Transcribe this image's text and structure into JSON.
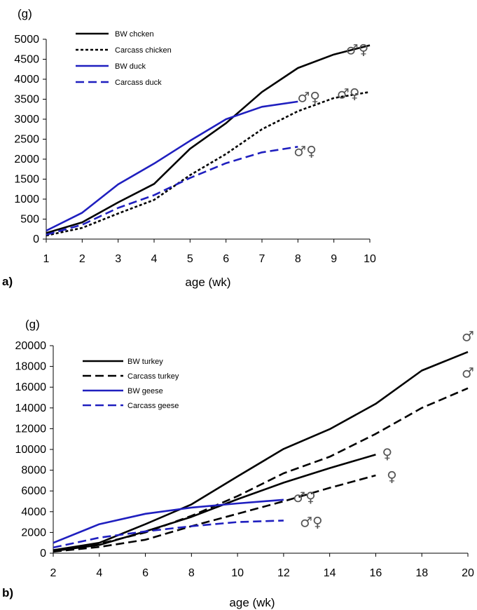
{
  "chart_data": [
    {
      "type": "line",
      "panel_label": "a)",
      "y_unit": "(g)",
      "xlabel": "age (wk)",
      "xlim": [
        1,
        10
      ],
      "ylim": [
        0,
        5000
      ],
      "x_ticks": [
        1,
        2,
        3,
        4,
        5,
        6,
        7,
        8,
        9,
        10
      ],
      "y_ticks": [
        0,
        500,
        1000,
        1500,
        2000,
        2500,
        3000,
        3500,
        4000,
        4500,
        5000
      ],
      "legend_position": "top-left",
      "grid": false,
      "series": [
        {
          "name": "BW chcken",
          "color": "#000000",
          "dash": "solid",
          "x": [
            1,
            2,
            3,
            4,
            5,
            6,
            7,
            8,
            9,
            10
          ],
          "y": [
            150,
            420,
            920,
            1380,
            2260,
            2900,
            3680,
            4280,
            4620,
            4850
          ]
        },
        {
          "name": "Carcass chicken",
          "color": "#000000",
          "dash": "dotted",
          "x": [
            1,
            2,
            3,
            4,
            5,
            6,
            7,
            8,
            9,
            10
          ],
          "y": [
            90,
            280,
            640,
            980,
            1600,
            2130,
            2750,
            3200,
            3530,
            3680
          ]
        },
        {
          "name": "BW duck",
          "color": "#1f1fbf",
          "dash": "solid",
          "x": [
            1,
            2,
            3,
            4,
            5,
            6,
            7,
            8
          ],
          "y": [
            210,
            660,
            1370,
            1890,
            2460,
            3000,
            3310,
            3440
          ]
        },
        {
          "name": "Carcass duck",
          "color": "#1f1fbf",
          "dash": "dashed",
          "x": [
            1,
            2,
            3,
            4,
            5,
            6,
            7,
            8
          ],
          "y": [
            110,
            360,
            780,
            1100,
            1530,
            1900,
            2170,
            2310
          ]
        }
      ],
      "annotations": [
        {
          "text": "♂♀",
          "x": 9.65,
          "y": 4750
        },
        {
          "text": "♂♀",
          "x": 8.3,
          "y": 3550
        },
        {
          "text": "♂♀",
          "x": 9.4,
          "y": 3640
        },
        {
          "text": "♂♀",
          "x": 8.2,
          "y": 2200
        }
      ]
    },
    {
      "type": "line",
      "panel_label": "b)",
      "y_unit": "(g)",
      "xlabel": "age (wk)",
      "xlim": [
        2,
        20
      ],
      "ylim": [
        0,
        20000
      ],
      "x_ticks": [
        2,
        4,
        6,
        8,
        10,
        12,
        14,
        16,
        18,
        20
      ],
      "y_ticks": [
        0,
        2000,
        4000,
        6000,
        8000,
        10000,
        12000,
        14000,
        16000,
        18000,
        20000
      ],
      "legend_position": "top-left",
      "grid": false,
      "series": [
        {
          "name": "BW turkey",
          "color": "#000000",
          "dash": "solid",
          "x": [
            2,
            4,
            6,
            8,
            10,
            12,
            14,
            16,
            18,
            20
          ],
          "y": [
            300,
            1000,
            2800,
            4700,
            7400,
            10050,
            11950,
            14400,
            17600,
            19400
          ]
        },
        {
          "name": "",
          "color": "#000000",
          "dash": "solid",
          "x": [
            2,
            4,
            6,
            8,
            10,
            12,
            14,
            16
          ],
          "y": [
            200,
            800,
            2100,
            3500,
            5200,
            6800,
            8200,
            9500
          ]
        },
        {
          "name": "Carcass turkey",
          "color": "#000000",
          "dash": "dashed",
          "x": [
            2,
            4,
            6,
            8,
            10,
            12,
            14,
            16,
            18,
            20
          ],
          "y": [
            250,
            900,
            2000,
            3600,
            5500,
            7700,
            9300,
            11500,
            14000,
            15900
          ]
        },
        {
          "name": "",
          "color": "#000000",
          "dash": "dashed",
          "x": [
            2,
            4,
            6,
            8,
            10,
            12,
            14,
            16
          ],
          "y": [
            150,
            600,
            1300,
            2600,
            3800,
            5000,
            6300,
            7500
          ]
        },
        {
          "name": "BW geese",
          "color": "#1f1fbf",
          "dash": "solid",
          "x": [
            2,
            4,
            6,
            8,
            10,
            12
          ],
          "y": [
            1000,
            2800,
            3800,
            4400,
            4800,
            5150
          ]
        },
        {
          "name": "Carcass geese",
          "color": "#1f1fbf",
          "dash": "dashed",
          "x": [
            2,
            4,
            6,
            8,
            10,
            12
          ],
          "y": [
            550,
            1500,
            2100,
            2600,
            3000,
            3150
          ]
        }
      ],
      "annotations": [
        {
          "text": "♂",
          "x": 20,
          "y": 20900
        },
        {
          "text": "♂",
          "x": 20,
          "y": 17400
        },
        {
          "text": "♀",
          "x": 16.5,
          "y": 9600
        },
        {
          "text": "♀",
          "x": 16.7,
          "y": 7400
        },
        {
          "text": "♂♀",
          "x": 12.9,
          "y": 5400
        },
        {
          "text": "♂♀",
          "x": 13.2,
          "y": 3000
        }
      ]
    }
  ]
}
